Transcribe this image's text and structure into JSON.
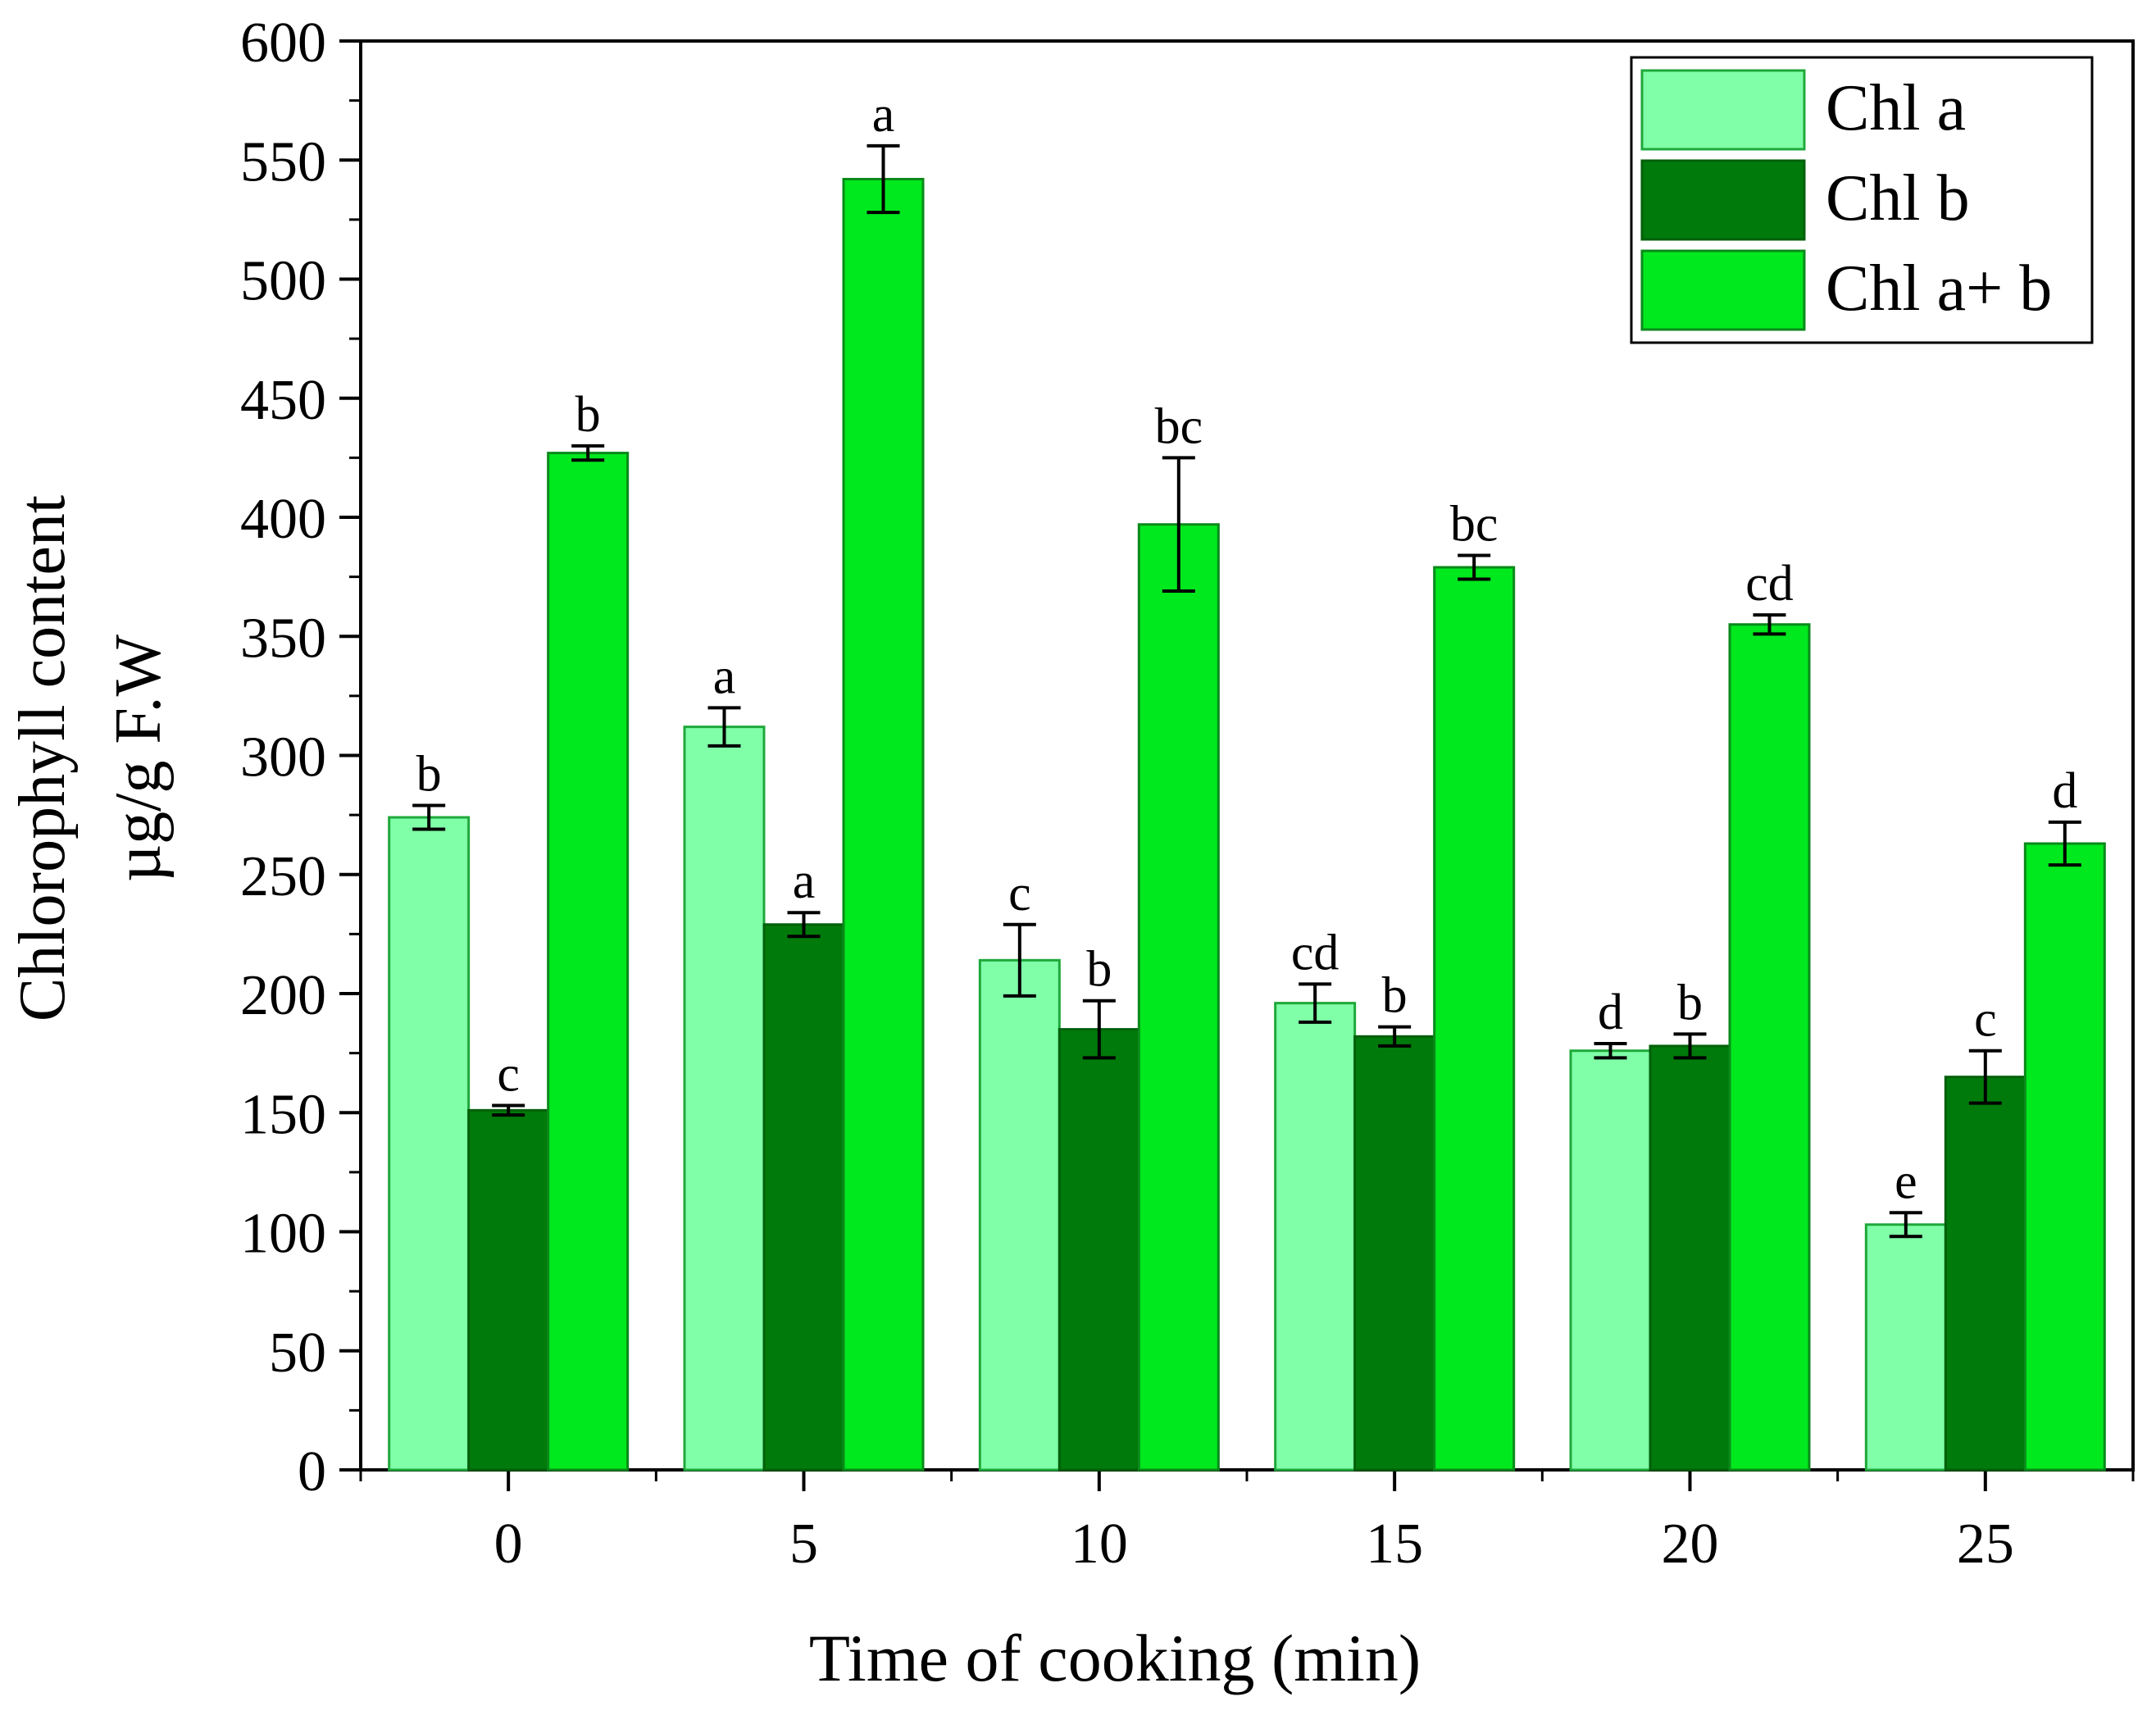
{
  "chart_data": {
    "type": "bar",
    "title": "",
    "xlabel": "Time of cooking (min)",
    "ylabel_lines": [
      "Chlorophyll content",
      "µg/g F.W"
    ],
    "categories": [
      "0",
      "5",
      "10",
      "15",
      "20",
      "25"
    ],
    "ylim": [
      0,
      600
    ],
    "yticks": [
      0,
      50,
      100,
      150,
      200,
      250,
      300,
      350,
      400,
      450,
      500,
      550,
      600
    ],
    "grid": false,
    "legend_position": "top-right",
    "series": [
      {
        "name": "Chl a",
        "color": "#80FFA8",
        "stroke": "#1FA83A",
        "values": [
          274,
          312,
          214,
          196,
          176,
          103
        ],
        "errors": [
          5,
          8,
          15,
          8,
          3,
          5
        ],
        "letters": [
          "b",
          "a",
          "c",
          "cd",
          "d",
          "e"
        ]
      },
      {
        "name": "Chl b",
        "color": "#007A0A",
        "stroke": "#00600A",
        "values": [
          151,
          229,
          185,
          182,
          178,
          165
        ],
        "errors": [
          2,
          5,
          12,
          4,
          5,
          11
        ],
        "letters": [
          "c",
          "a",
          "b",
          "b",
          "b",
          "c"
        ]
      },
      {
        "name": "Chl a+ b",
        "color": "#00E81E",
        "stroke": "#0A8A1A",
        "values": [
          427,
          542,
          397,
          379,
          355,
          263
        ],
        "errors": [
          3,
          14,
          28,
          5,
          4,
          9
        ],
        "letters": [
          "b",
          "a",
          "bc",
          "bc",
          "cd",
          "d"
        ]
      }
    ]
  }
}
